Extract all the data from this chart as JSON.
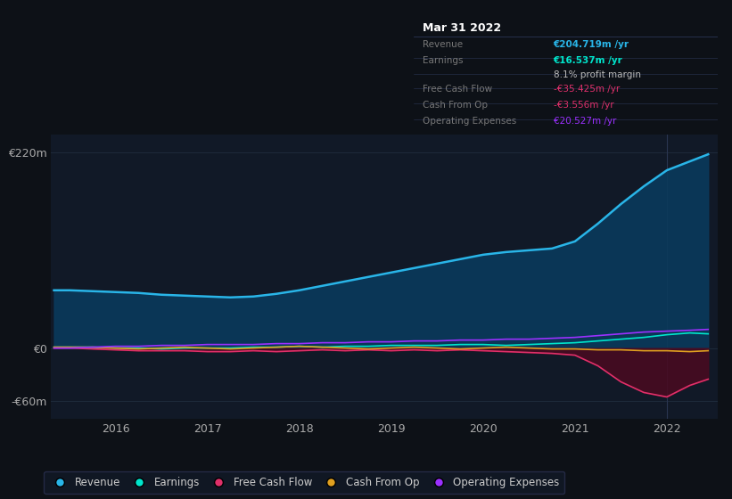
{
  "background_color": "#0d1117",
  "plot_bg_color": "#111927",
  "ylabel_220": "€220m",
  "ylabel_0": "€0",
  "ylabel_neg60": "-€60m",
  "x_ticks": [
    2016,
    2017,
    2018,
    2019,
    2020,
    2021,
    2022
  ],
  "ylim": [
    -80,
    240
  ],
  "xlim": [
    2015.3,
    2022.55
  ],
  "revenue_color": "#29b5e8",
  "earnings_color": "#00e5cc",
  "fcf_color": "#e0306a",
  "cashfromop_color": "#e0a020",
  "opex_color": "#9b30ff",
  "revenue_fill_alpha": 0.55,
  "fcf_fill_color": "#5a1030",
  "legend_items": [
    "Revenue",
    "Earnings",
    "Free Cash Flow",
    "Cash From Op",
    "Operating Expenses"
  ],
  "legend_colors": [
    "#29b5e8",
    "#00e5cc",
    "#e0306a",
    "#e0a020",
    "#9b30ff"
  ],
  "time_points": [
    2015.33,
    2015.5,
    2015.75,
    2016.0,
    2016.25,
    2016.5,
    2016.75,
    2017.0,
    2017.25,
    2017.5,
    2017.75,
    2018.0,
    2018.25,
    2018.5,
    2018.75,
    2019.0,
    2019.25,
    2019.5,
    2019.75,
    2020.0,
    2020.25,
    2020.5,
    2020.75,
    2021.0,
    2021.25,
    2021.5,
    2021.75,
    2022.0,
    2022.25,
    2022.45
  ],
  "revenue": [
    65,
    65,
    64,
    63,
    62,
    60,
    59,
    58,
    57,
    58,
    61,
    65,
    70,
    75,
    80,
    85,
    90,
    95,
    100,
    105,
    108,
    110,
    112,
    120,
    140,
    162,
    182,
    200,
    210,
    218
  ],
  "earnings": [
    1,
    1,
    1,
    0,
    0,
    -1,
    0,
    0,
    0,
    1,
    1,
    2,
    1,
    2,
    2,
    3,
    3,
    3,
    4,
    4,
    3,
    4,
    5,
    6,
    8,
    10,
    12,
    15,
    17,
    16
  ],
  "fcf": [
    0,
    0,
    -1,
    -2,
    -3,
    -3,
    -3,
    -4,
    -4,
    -3,
    -4,
    -3,
    -2,
    -3,
    -2,
    -3,
    -2,
    -3,
    -2,
    -3,
    -4,
    -5,
    -6,
    -8,
    -20,
    -38,
    -50,
    -55,
    -42,
    -35
  ],
  "cashfromop": [
    1,
    1,
    1,
    0,
    -1,
    0,
    1,
    0,
    -1,
    0,
    1,
    2,
    1,
    0,
    -1,
    0,
    1,
    0,
    -1,
    0,
    1,
    0,
    -1,
    -1,
    -2,
    -2,
    -3,
    -3,
    -4,
    -3
  ],
  "opex": [
    0,
    0,
    1,
    2,
    2,
    3,
    3,
    4,
    4,
    4,
    5,
    5,
    6,
    6,
    7,
    7,
    8,
    8,
    9,
    9,
    10,
    10,
    11,
    12,
    14,
    16,
    18,
    19,
    20,
    21
  ],
  "tooltip": {
    "title": "Mar 31 2022",
    "rows": [
      {
        "label": "Revenue",
        "value": "€204.719m /yr",
        "label_color": "#777777",
        "value_color": "#29b5e8"
      },
      {
        "label": "Earnings",
        "value": "€16.537m /yr",
        "label_color": "#777777",
        "value_color": "#00e5cc"
      },
      {
        "label": "",
        "value": "8.1% profit margin",
        "label_color": "#777777",
        "value_color": "#bbbbbb"
      },
      {
        "label": "Free Cash Flow",
        "value": "-€35.425m /yr",
        "label_color": "#777777",
        "value_color": "#e0306a"
      },
      {
        "label": "Cash From Op",
        "value": "-€3.556m /yr",
        "label_color": "#777777",
        "value_color": "#e0306a"
      },
      {
        "label": "Operating Expenses",
        "value": "€20.527m /yr",
        "label_color": "#777777",
        "value_color": "#9b30ff"
      }
    ]
  }
}
